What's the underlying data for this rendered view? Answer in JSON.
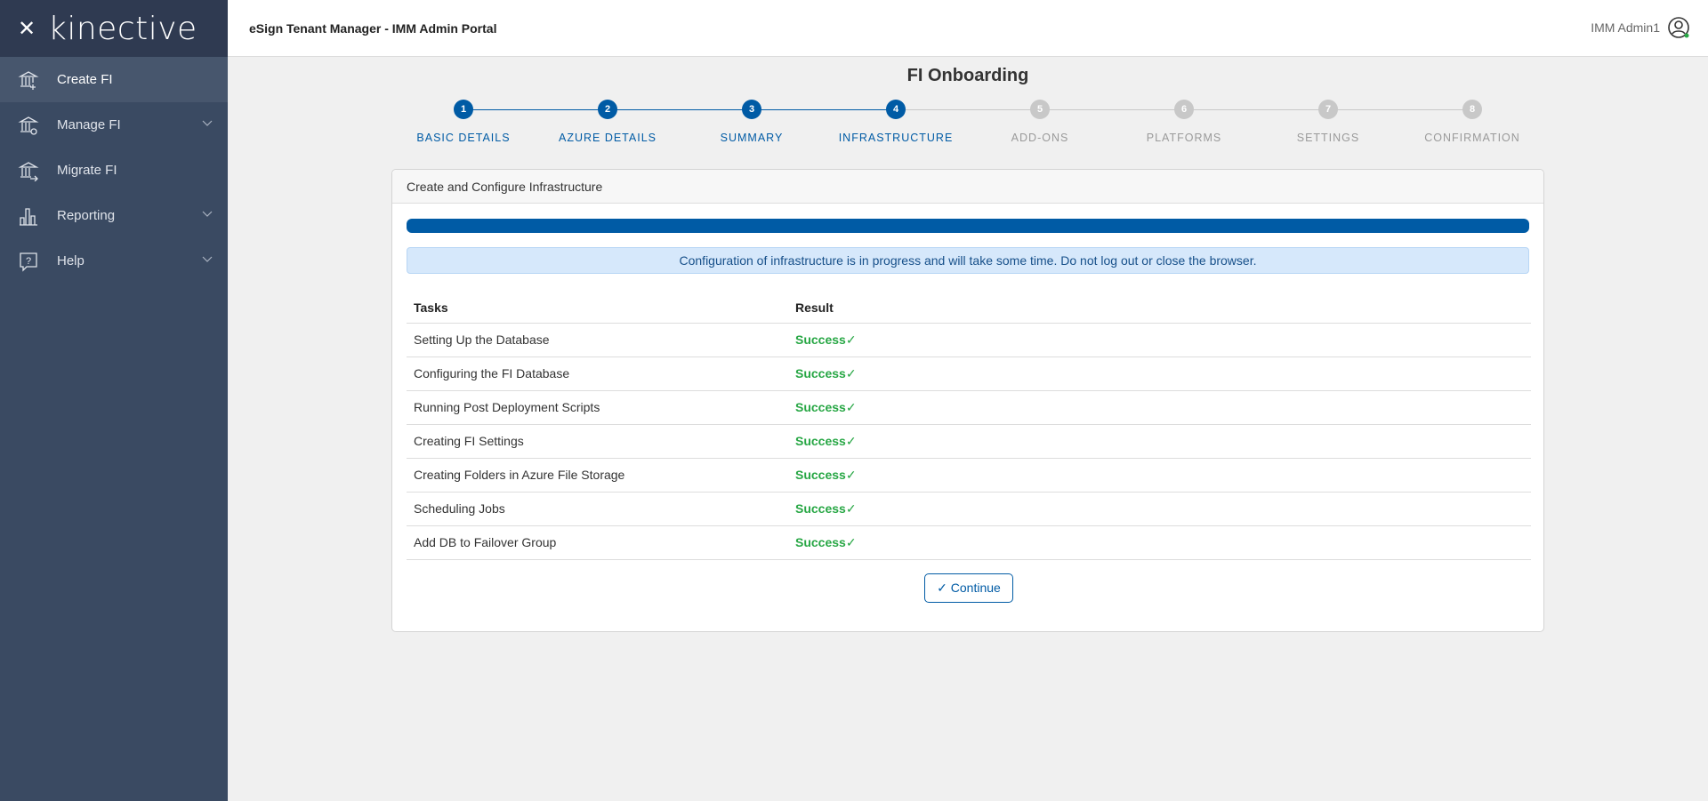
{
  "app": {
    "logo": "kinective",
    "header_title": "eSign Tenant Manager - IMM Admin Portal",
    "user": "IMM Admin1"
  },
  "sidebar": {
    "items": [
      {
        "label": "Create FI",
        "icon": "bank-plus-icon",
        "active": true
      },
      {
        "label": "Manage FI",
        "icon": "bank-gear-icon",
        "expandable": true
      },
      {
        "label": "Migrate FI",
        "icon": "bank-arrow-icon"
      },
      {
        "label": "Reporting",
        "icon": "bar-chart-icon",
        "expandable": true
      },
      {
        "label": "Help",
        "icon": "help-bubble-icon",
        "expandable": true
      }
    ]
  },
  "page": {
    "title": "FI Onboarding"
  },
  "steps": [
    {
      "num": "1",
      "label": "BASIC DETAILS",
      "done": true
    },
    {
      "num": "2",
      "label": "AZURE DETAILS",
      "done": true
    },
    {
      "num": "3",
      "label": "SUMMARY",
      "done": true
    },
    {
      "num": "4",
      "label": "INFRASTRUCTURE",
      "done": true
    },
    {
      "num": "5",
      "label": "ADD-ONS",
      "done": false
    },
    {
      "num": "6",
      "label": "PLATFORMS",
      "done": false
    },
    {
      "num": "7",
      "label": "SETTINGS",
      "done": false
    },
    {
      "num": "8",
      "label": "CONFIRMATION",
      "done": false
    }
  ],
  "card": {
    "title": "Create and Configure Infrastructure",
    "progress_percent": 100,
    "alert": "Configuration of infrastructure is in progress and will take some time. Do not log out or close the browser.",
    "columns": [
      "Tasks",
      "Result"
    ],
    "rows": [
      {
        "task": "Setting Up the Database",
        "result": "Success"
      },
      {
        "task": "Configuring the FI Database",
        "result": "Success"
      },
      {
        "task": "Running Post Deployment Scripts",
        "result": "Success"
      },
      {
        "task": "Creating FI Settings",
        "result": "Success"
      },
      {
        "task": "Creating Folders in Azure File Storage",
        "result": "Success"
      },
      {
        "task": "Scheduling Jobs",
        "result": "Success"
      },
      {
        "task": "Add DB to Failover Group",
        "result": "Success"
      }
    ],
    "continue_label": "Continue"
  },
  "colors": {
    "primary": "#005ba5",
    "success": "#28a745",
    "inactive": "#c8c8c8",
    "sidebar": "#3a4a62"
  }
}
